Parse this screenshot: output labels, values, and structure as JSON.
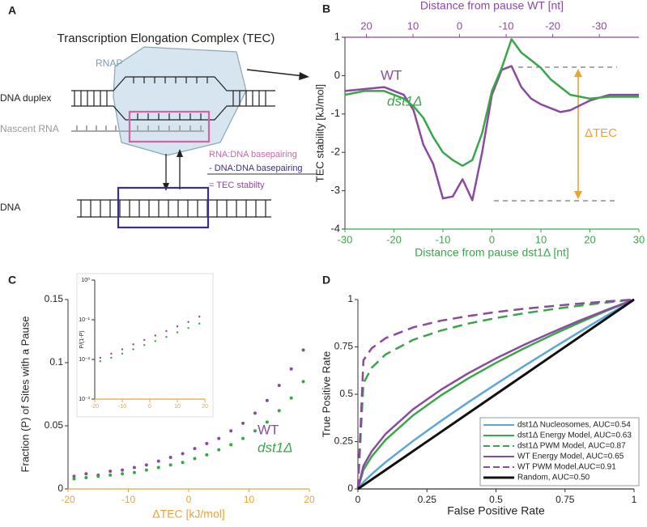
{
  "diagram": {
    "panel_label": "A",
    "title": "Transcription Elongation Complex (TEC)",
    "labels": {
      "rnap": "RNAP",
      "dna_duplex": "DNA duplex",
      "nascent_rna": "Nascent RNA",
      "dna": "DNA"
    },
    "equation": [
      "RNA:DNA basepairing",
      "- DNA:DNA basepairing",
      "= TEC stabilty"
    ]
  },
  "chart_data": [
    {
      "panel_label": "B",
      "type": "line",
      "xlabel": "Distance from pause dst1Δ [nt]",
      "x2label": "Distance from pause WT [nt]",
      "ylabel": "TEC stability [kJ/mol]",
      "x": [
        -30,
        -26,
        -22,
        -18,
        -16,
        -14,
        -12,
        -10,
        -8,
        -6,
        -4,
        -2,
        0,
        2,
        4,
        6,
        8,
        10,
        12,
        14,
        16,
        20,
        24,
        30
      ],
      "xlim": [
        -30,
        30
      ],
      "xticks": [
        -30,
        -20,
        -10,
        0,
        10,
        20,
        30
      ],
      "x2lim": [
        24.6,
        -38.5
      ],
      "x2ticks": [
        20,
        10,
        0,
        -10,
        -20,
        -30
      ],
      "ylim": [
        -4,
        1
      ],
      "yticks": [
        -4,
        -3,
        -2,
        -1,
        0,
        1
      ],
      "xaxis_color": "#3aa64a",
      "x2axis_color": "#8a4a9e",
      "series": [
        {
          "name": "WT",
          "color": "#8a4a9e",
          "values": [
            -0.4,
            -0.35,
            -0.3,
            -0.5,
            -0.9,
            -1.8,
            -2.3,
            -3.2,
            -3.15,
            -2.7,
            -3.25,
            -2.0,
            -0.5,
            0.15,
            0.25,
            -0.3,
            -0.6,
            -0.75,
            -0.85,
            -0.95,
            -0.9,
            -0.65,
            -0.5,
            -0.5
          ]
        },
        {
          "name": "dst1Δ",
          "color": "#3aa64a",
          "values": [
            -0.5,
            -0.4,
            -0.4,
            -0.6,
            -0.8,
            -1.1,
            -1.6,
            -2.0,
            -2.2,
            -2.35,
            -2.2,
            -1.5,
            -0.4,
            0.2,
            0.95,
            0.6,
            0.4,
            0.2,
            -0.1,
            -0.3,
            -0.5,
            -0.6,
            -0.55,
            -0.55
          ]
        }
      ],
      "annotations": [
        "ΔTEC"
      ]
    },
    {
      "panel_label": "C",
      "type": "scatter",
      "xlabel": "ΔTEC [kJ/mol]",
      "ylabel": "Fraction (P) of Sites with a Pause",
      "x": [
        -19,
        -17,
        -15,
        -13,
        -11,
        -9,
        -7,
        -5,
        -3,
        -1,
        1,
        3,
        5,
        7,
        9,
        11,
        13,
        15,
        17,
        19
      ],
      "xlim": [
        -20,
        20
      ],
      "xticks": [
        -20,
        -10,
        0,
        10,
        20
      ],
      "ylim": [
        0,
        0.15
      ],
      "yticks": [
        0,
        0.05,
        0.1,
        0.15
      ],
      "xaxis_color": "#e8a33c",
      "series": [
        {
          "name": "WT",
          "color": "#8a4a9e",
          "values": [
            0.01,
            0.012,
            0.011,
            0.014,
            0.015,
            0.017,
            0.019,
            0.022,
            0.025,
            0.028,
            0.032,
            0.036,
            0.04,
            0.046,
            0.052,
            0.06,
            0.07,
            0.082,
            0.095,
            0.11
          ]
        },
        {
          "name": "dst1Δ",
          "color": "#3aa64a",
          "values": [
            0.008,
            0.009,
            0.01,
            0.011,
            0.012,
            0.013,
            0.015,
            0.017,
            0.019,
            0.021,
            0.024,
            0.027,
            0.031,
            0.035,
            0.04,
            0.046,
            0.053,
            0.062,
            0.072,
            0.085
          ]
        }
      ]
    },
    {
      "type": "scatter",
      "ylabel": "P/(1-P)",
      "log_y": true,
      "x": [
        -18,
        -14,
        -10,
        -6,
        -2,
        2,
        6,
        10,
        14,
        18
      ],
      "xlim": [
        -20,
        20
      ],
      "xticks": [
        -20,
        -10,
        0,
        10,
        20
      ],
      "ylim": [
        0.001,
        1
      ],
      "yticks": [
        {
          "value": 0.001,
          "label": "10⁻³"
        },
        {
          "value": 0.01,
          "label": "10⁻²"
        },
        {
          "value": 0.1,
          "label": "10⁻¹"
        },
        {
          "value": 1,
          "label": "10⁰"
        }
      ],
      "xaxis_color": "#e8a33c",
      "series": [
        {
          "color": "#8a4a9e",
          "values": [
            0.011,
            0.014,
            0.018,
            0.024,
            0.031,
            0.04,
            0.052,
            0.068,
            0.088,
            0.12
          ]
        },
        {
          "color": "#3aa64a",
          "values": [
            0.009,
            0.011,
            0.014,
            0.018,
            0.023,
            0.029,
            0.037,
            0.048,
            0.062,
            0.08
          ]
        }
      ]
    },
    {
      "panel_label": "D",
      "type": "line",
      "xlabel": "False Positive Rate",
      "ylabel": "True Positive Rate",
      "x": [
        0,
        0.02,
        0.05,
        0.1,
        0.2,
        0.3,
        0.4,
        0.5,
        0.6,
        0.7,
        0.8,
        0.9,
        1
      ],
      "xlim": [
        0,
        1
      ],
      "xticks": [
        0,
        0.25,
        0.5,
        0.75,
        1
      ],
      "ylim": [
        0,
        1
      ],
      "yticks": [
        0,
        0.25,
        0.5,
        0.75,
        1
      ],
      "legend": "lower right",
      "series": [
        {
          "name": "dst1Δ Nucleosomes, AUC=0.54",
          "color": "#5ba8d6",
          "values": [
            0,
            0.036,
            0.078,
            0.141,
            0.254,
            0.358,
            0.458,
            0.554,
            0.647,
            0.738,
            0.827,
            0.914,
            1
          ]
        },
        {
          "name": "dst1Δ Energy Model, AUC=0.63",
          "color": "#3aa64a",
          "values": [
            0,
            0.101,
            0.172,
            0.259,
            0.389,
            0.493,
            0.584,
            0.666,
            0.741,
            0.811,
            0.877,
            0.94,
            1
          ]
        },
        {
          "name": "dst1Δ PWM Model, AUC=0.87",
          "color": "#3aa64a",
          "dashed": true,
          "values": [
            0,
            0.558,
            0.64,
            0.71,
            0.787,
            0.836,
            0.873,
            0.902,
            0.927,
            0.948,
            0.967,
            0.984,
            1
          ]
        },
        {
          "name": "WT Energy Model, AUC=0.65",
          "color": "#8a4a9e",
          "values": [
            0,
            0.122,
            0.199,
            0.29,
            0.421,
            0.523,
            0.611,
            0.689,
            0.76,
            0.825,
            0.887,
            0.945,
            1
          ]
        },
        {
          "name": "WT PWM Model,AUC=0.91",
          "color": "#8a4a9e",
          "dashed": true,
          "values": [
            0,
            0.679,
            0.743,
            0.796,
            0.853,
            0.888,
            0.913,
            0.934,
            0.951,
            0.965,
            0.978,
            0.99,
            1
          ]
        },
        {
          "name": "Random, AUC=0.50",
          "color": "#111111",
          "width": 3,
          "values": [
            0,
            0.02,
            0.05,
            0.1,
            0.2,
            0.3,
            0.4,
            0.5,
            0.6,
            0.7,
            0.8,
            0.9,
            1
          ]
        }
      ]
    }
  ]
}
